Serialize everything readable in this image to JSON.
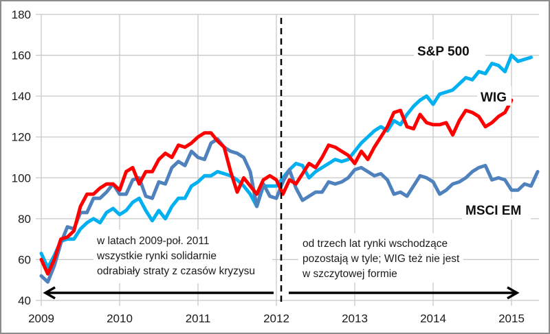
{
  "chart_data": {
    "type": "line",
    "title": "",
    "xlabel": "",
    "ylabel": "",
    "xlim": [
      2009.0,
      2015.35
    ],
    "ylim": [
      40,
      180
    ],
    "grid": true,
    "x_ticks": [
      "2009",
      "2010",
      "2011",
      "2012",
      "2013",
      "2014",
      "2015"
    ],
    "y_ticks": [
      "40",
      "60",
      "80",
      "100",
      "120",
      "140",
      "160",
      "180"
    ],
    "x_start": 2009.0,
    "x_step_months": 1,
    "series": [
      {
        "name": "S&P 500",
        "color": "#00b0f0",
        "values": [
          63,
          56,
          62,
          69,
          70,
          70,
          75,
          78,
          80,
          78,
          83,
          85,
          82,
          84,
          88,
          90,
          84,
          79,
          84,
          80,
          86,
          90,
          90,
          96,
          98,
          101,
          101,
          103,
          102,
          101,
          99,
          96,
          92,
          86,
          96,
          96,
          96,
          100,
          104,
          107,
          106,
          100,
          103,
          105,
          107,
          109,
          108,
          109,
          113,
          117,
          120,
          123,
          125,
          123,
          128,
          126,
          131,
          135,
          138,
          140,
          136,
          141,
          142,
          143,
          146,
          149,
          148,
          152,
          151,
          156,
          155,
          152,
          160,
          157,
          158,
          159
        ]
      },
      {
        "name": "WIG",
        "color": "#ff0000",
        "values": [
          60,
          53,
          60,
          70,
          71,
          74,
          86,
          92,
          92,
          95,
          97,
          97,
          94,
          103,
          105,
          97,
          103,
          103,
          109,
          112,
          110,
          116,
          115,
          117,
          120,
          122,
          122,
          118,
          115,
          103,
          93,
          100,
          96,
          92,
          99,
          101,
          99,
          92,
          99,
          97,
          102,
          107,
          105,
          110,
          116,
          115,
          113,
          111,
          107,
          113,
          109,
          115,
          120,
          125,
          132,
          133,
          125,
          124,
          131,
          127,
          126,
          126,
          127,
          121,
          128,
          133,
          132,
          130,
          125,
          127,
          130,
          132,
          138
        ]
      },
      {
        "name": "MSCI EM",
        "color": "#4f81bd",
        "values": [
          52,
          49,
          57,
          68,
          76,
          75,
          83,
          83,
          90,
          90,
          93,
          97,
          92,
          92,
          99,
          100,
          91,
          90,
          98,
          97,
          105,
          108,
          106,
          113,
          110,
          109,
          117,
          119,
          115,
          113,
          112,
          110,
          103,
          86,
          97,
          91,
          90,
          98,
          104,
          95,
          89,
          91,
          93,
          93,
          98,
          97,
          98,
          100,
          104,
          105,
          103,
          101,
          102,
          99,
          92,
          93,
          91,
          96,
          101,
          100,
          98,
          92,
          94,
          97,
          98,
          100,
          103,
          105,
          106,
          99,
          100,
          99,
          94,
          94,
          97,
          96,
          103
        ]
      }
    ],
    "annotations": {
      "label_sp500": "S&P 500",
      "label_wig": "WIG",
      "label_msci": "MSCI EM",
      "note_left": [
        "w latach 2009-poł. 2011",
        "wszystkie rynki solidarnie",
        "odrabiały straty z czasów kryzysu"
      ],
      "note_right": [
        "od trzech lat rynki wschodzące",
        "pozostają w tyle; WIG też nie jest",
        "w szczytowej formie"
      ],
      "divider_at": 2012.0
    }
  }
}
